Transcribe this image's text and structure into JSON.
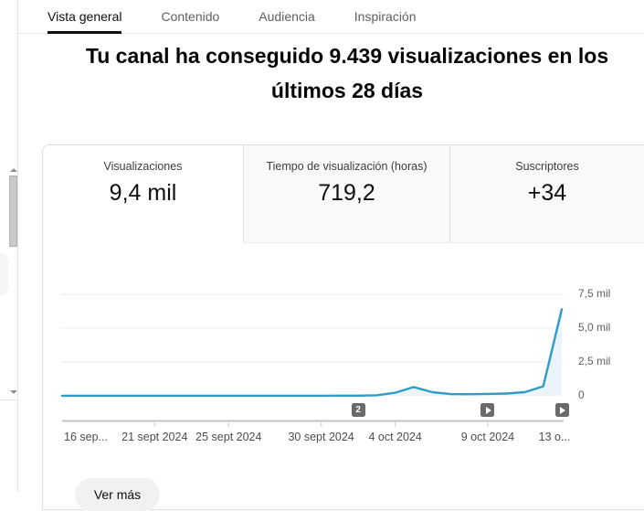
{
  "tabs": {
    "items": [
      {
        "label": "Vista general",
        "active": true
      },
      {
        "label": "Contenido",
        "active": false
      },
      {
        "label": "Audiencia",
        "active": false
      },
      {
        "label": "Inspiración",
        "active": false
      }
    ]
  },
  "headline": {
    "line1": "Tu canal ha conseguido 9.439 visualizaciones en los",
    "line2": "últimos 28 días"
  },
  "metric_tabs": [
    {
      "label": "Visualizaciones",
      "value": "9,4 mil",
      "active": true
    },
    {
      "label": "Tiempo de visualización (horas)",
      "value": "719,2",
      "active": false
    },
    {
      "label": "Suscriptores",
      "value": "+34",
      "active": false
    }
  ],
  "chart_data": {
    "type": "line",
    "series_name": "Visualizaciones",
    "x": [
      "2024-09-16",
      "2024-09-17",
      "2024-09-18",
      "2024-09-19",
      "2024-09-20",
      "2024-09-21",
      "2024-09-22",
      "2024-09-23",
      "2024-09-24",
      "2024-09-25",
      "2024-09-26",
      "2024-09-27",
      "2024-09-28",
      "2024-09-29",
      "2024-09-30",
      "2024-10-01",
      "2024-10-02",
      "2024-10-03",
      "2024-10-04",
      "2024-10-05",
      "2024-10-06",
      "2024-10-07",
      "2024-10-08",
      "2024-10-09",
      "2024-10-10",
      "2024-10-11",
      "2024-10-12",
      "2024-10-13"
    ],
    "values": [
      6,
      5,
      7,
      5,
      6,
      8,
      5,
      7,
      6,
      5,
      8,
      6,
      7,
      9,
      10,
      12,
      15,
      40,
      230,
      650,
      270,
      130,
      120,
      140,
      170,
      270,
      700,
      6400
    ],
    "ylim": [
      0,
      7500
    ],
    "grid": true,
    "yticks": [
      {
        "value": 7500,
        "label": "7,5 mil"
      },
      {
        "value": 5000,
        "label": "5,0 mil"
      },
      {
        "value": 2500,
        "label": "2,5 mil"
      },
      {
        "value": 0,
        "label": "0"
      }
    ],
    "xticks": [
      {
        "date": "2024-09-16",
        "label": "16 sep..."
      },
      {
        "date": "2024-09-21",
        "label": "21 sept 2024"
      },
      {
        "date": "2024-09-25",
        "label": "25 sept 2024"
      },
      {
        "date": "2024-09-30",
        "label": "30 sept 2024"
      },
      {
        "date": "2024-10-04",
        "label": "4 oct 2024"
      },
      {
        "date": "2024-10-09",
        "label": "9 oct 2024"
      },
      {
        "date": "2024-10-13",
        "label": "13 o..."
      }
    ],
    "markers": [
      {
        "date": "2024-10-02",
        "type": "count",
        "badge": "2"
      },
      {
        "date": "2024-10-09",
        "type": "video"
      },
      {
        "date": "2024-10-13",
        "type": "video"
      }
    ],
    "line_color": "#2e9cc6",
    "fill_color": "#eaf4f9",
    "grid_color": "#ececec",
    "axis_color": "#c3c3c3",
    "tick_color": "#d9d9d9",
    "badge_color": "#6a6a6a"
  },
  "footer": {
    "see_more": "Ver más"
  }
}
